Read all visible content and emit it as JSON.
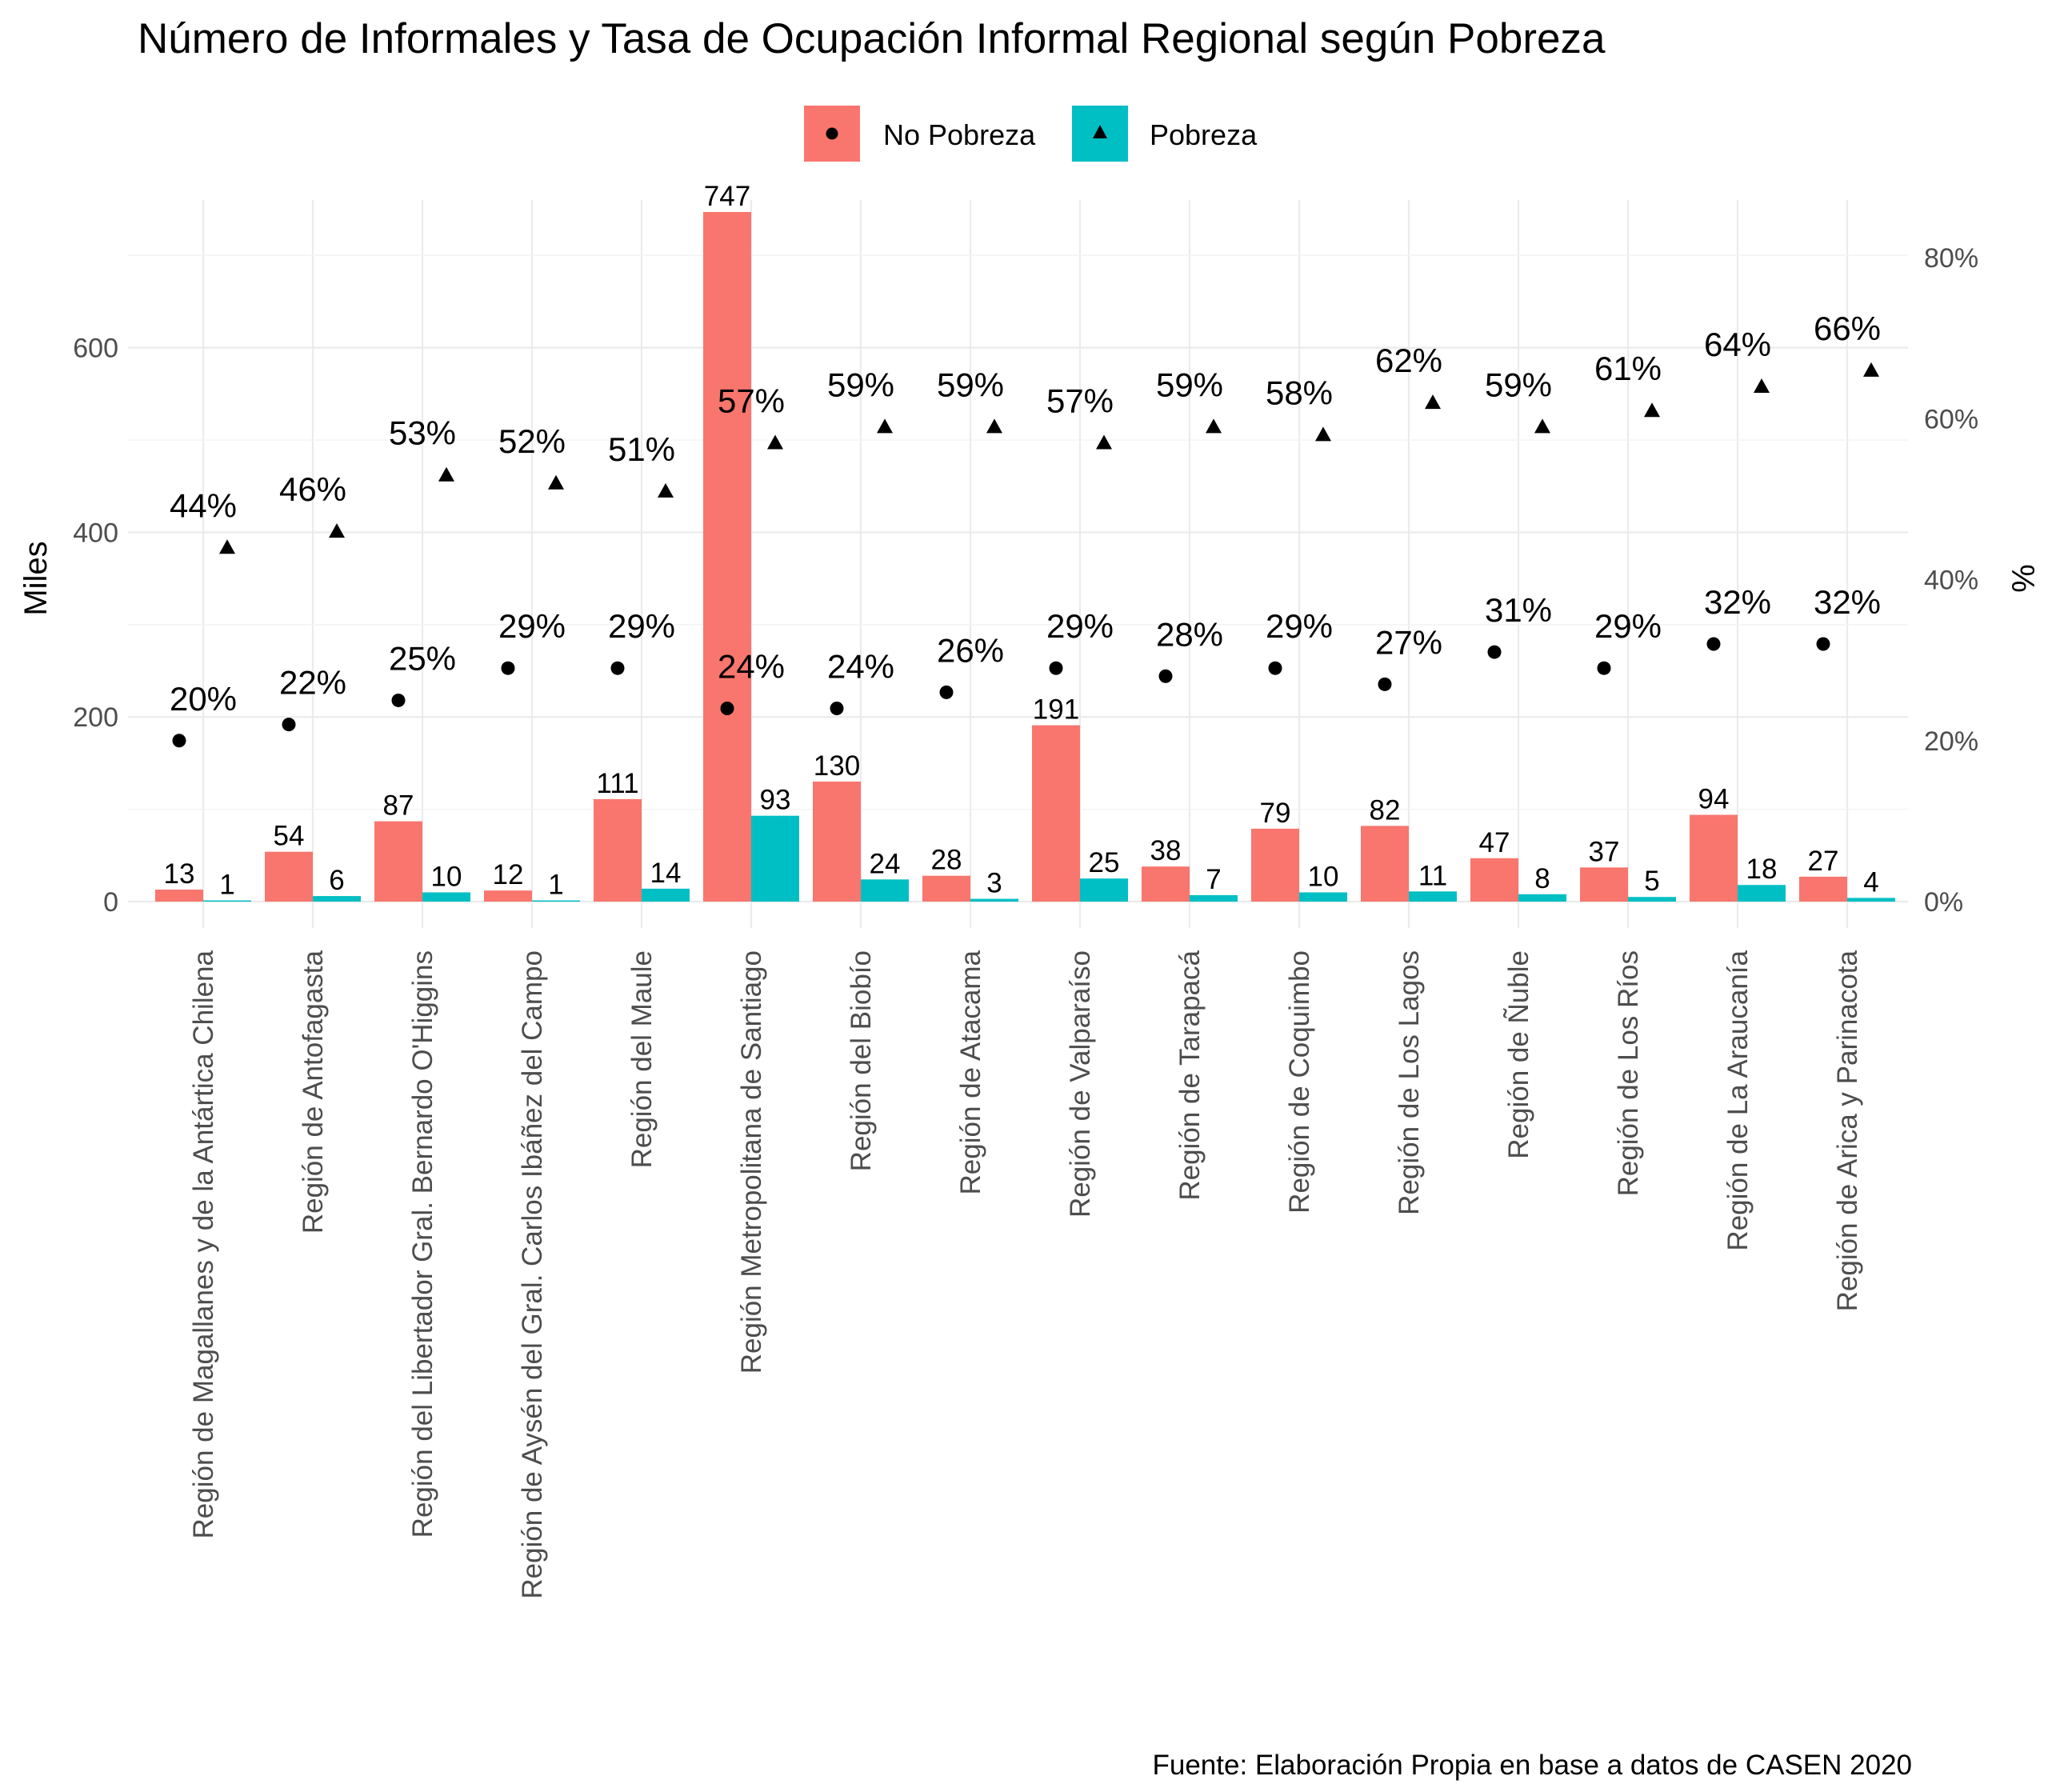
{
  "chart_data": {
    "type": "bar",
    "title": "Número de Informales y Tasa de Ocupación Informal Regional según Pobreza",
    "ylabel": "Miles",
    "y2label": "%",
    "caption": "Fuente: Elaboración Propia en base a datos de CASEN 2020",
    "ylim": [
      0,
      760
    ],
    "y2lim": [
      0,
      0.8
    ],
    "yticks": [
      0,
      200,
      400,
      600
    ],
    "y2ticks": [
      "0%",
      "20%",
      "40%",
      "60%",
      "80%"
    ],
    "grid": true,
    "legend_position": "top",
    "categories": [
      "Región de Magallanes y de la Antártica Chilena",
      "Región de Antofagasta",
      "Región del Libertador Gral. Bernardo O'Higgins",
      "Región de Aysén del Gral. Carlos Ibáñez del Campo",
      "Región del Maule",
      "Región Metropolitana de Santiago",
      "Región del Biobío",
      "Región de Atacama",
      "Región de Valparaíso",
      "Región de Tarapacá",
      "Región de Coquimbo",
      "Región de Los Lagos",
      "Región de Ñuble",
      "Región de Los Ríos",
      "Región de La Araucanía",
      "Región de Arica y Parinacota"
    ],
    "series": [
      {
        "name": "No Pobreza",
        "color": "#F8766D",
        "marker": "circle",
        "values": [
          13,
          54,
          87,
          12,
          111,
          747,
          130,
          28,
          191,
          38,
          79,
          82,
          47,
          37,
          94,
          27
        ],
        "rate": [
          0.2,
          0.22,
          0.25,
          0.29,
          0.29,
          0.24,
          0.24,
          0.26,
          0.29,
          0.28,
          0.29,
          0.27,
          0.31,
          0.29,
          0.32,
          0.32
        ],
        "rate_labels": [
          "20%",
          "22%",
          "25%",
          "29%",
          "29%",
          "24%",
          "24%",
          "26%",
          "29%",
          "28%",
          "29%",
          "27%",
          "31%",
          "29%",
          "32%",
          "32%"
        ]
      },
      {
        "name": "Pobreza",
        "color": "#00BFC4",
        "marker": "triangle",
        "values": [
          1,
          6,
          10,
          1,
          14,
          93,
          24,
          3,
          25,
          7,
          10,
          11,
          8,
          5,
          18,
          4
        ],
        "rate": [
          0.44,
          0.46,
          0.53,
          0.52,
          0.51,
          0.57,
          0.59,
          0.59,
          0.57,
          0.59,
          0.58,
          0.62,
          0.59,
          0.61,
          0.64,
          0.66
        ],
        "rate_labels": [
          "44%",
          "46%",
          "53%",
          "52%",
          "51%",
          "57%",
          "59%",
          "59%",
          "57%",
          "59%",
          "58%",
          "62%",
          "59%",
          "61%",
          "64%",
          "66%"
        ]
      }
    ]
  }
}
